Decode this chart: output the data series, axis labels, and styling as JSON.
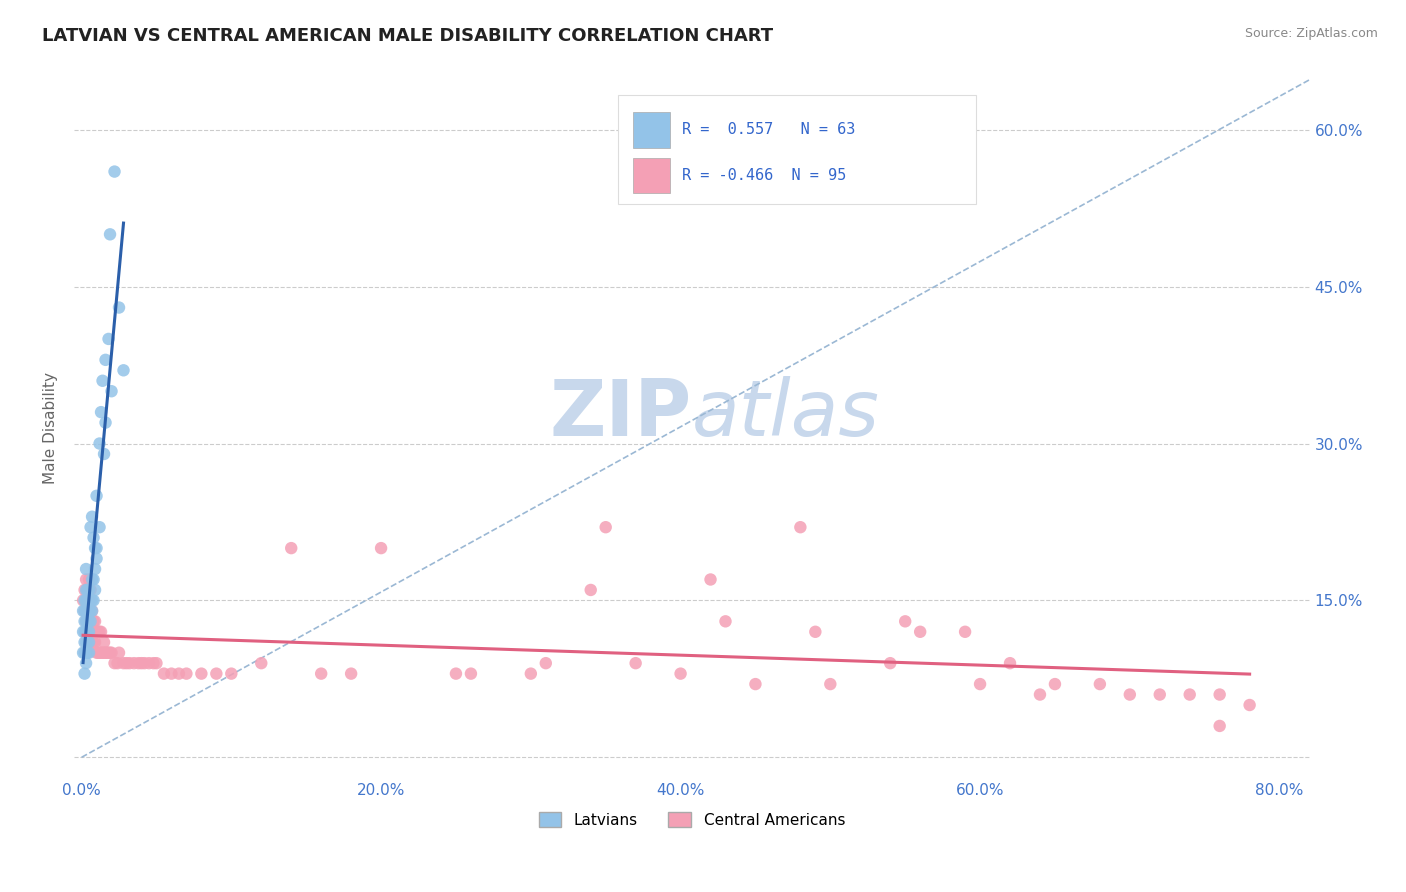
{
  "title": "LATVIAN VS CENTRAL AMERICAN MALE DISABILITY CORRELATION CHART",
  "source": "Source: ZipAtlas.com",
  "xlabel_ticks": [
    "0.0%",
    "20.0%",
    "40.0%",
    "60.0%",
    "80.0%"
  ],
  "xlabel_tick_vals": [
    0.0,
    0.2,
    0.4,
    0.6,
    0.8
  ],
  "ylabel": "Male Disability",
  "ylabel_ticks": [
    "0.0%",
    "15.0%",
    "30.0%",
    "45.0%",
    "60.0%"
  ],
  "ylabel_tick_vals": [
    0.0,
    0.15,
    0.3,
    0.45,
    0.6
  ],
  "xlim": [
    -0.005,
    0.82
  ],
  "ylim": [
    -0.02,
    0.65
  ],
  "latvian_R": 0.557,
  "latvian_N": 63,
  "central_american_R": -0.466,
  "central_american_N": 95,
  "latvian_color": "#93C3E8",
  "central_american_color": "#F4A0B5",
  "latvian_line_color": "#2B5FAA",
  "central_american_line_color": "#E06080",
  "trendline_dashed_color": "#9BB8D4",
  "background_color": "#FFFFFF",
  "watermark_zip": "ZIP",
  "watermark_atlas": "atlas",
  "watermark_color": "#C8D8EC",
  "latvian_x": [
    0.001,
    0.001,
    0.001,
    0.002,
    0.002,
    0.002,
    0.002,
    0.002,
    0.002,
    0.002,
    0.003,
    0.003,
    0.003,
    0.003,
    0.003,
    0.003,
    0.003,
    0.003,
    0.003,
    0.004,
    0.004,
    0.004,
    0.004,
    0.004,
    0.004,
    0.004,
    0.005,
    0.005,
    0.005,
    0.005,
    0.005,
    0.005,
    0.005,
    0.006,
    0.006,
    0.006,
    0.006,
    0.007,
    0.007,
    0.007,
    0.007,
    0.008,
    0.008,
    0.008,
    0.009,
    0.009,
    0.009,
    0.01,
    0.01,
    0.01,
    0.012,
    0.012,
    0.013,
    0.014,
    0.015,
    0.016,
    0.016,
    0.018,
    0.019,
    0.02,
    0.022,
    0.025,
    0.028
  ],
  "latvian_y": [
    0.1,
    0.12,
    0.14,
    0.08,
    0.1,
    0.11,
    0.12,
    0.13,
    0.14,
    0.15,
    0.09,
    0.1,
    0.11,
    0.12,
    0.13,
    0.14,
    0.15,
    0.16,
    0.18,
    0.1,
    0.11,
    0.12,
    0.13,
    0.14,
    0.15,
    0.16,
    0.1,
    0.11,
    0.12,
    0.13,
    0.14,
    0.15,
    0.16,
    0.13,
    0.14,
    0.15,
    0.22,
    0.14,
    0.15,
    0.17,
    0.23,
    0.15,
    0.17,
    0.21,
    0.16,
    0.18,
    0.2,
    0.19,
    0.2,
    0.25,
    0.22,
    0.3,
    0.33,
    0.36,
    0.29,
    0.32,
    0.38,
    0.4,
    0.5,
    0.35,
    0.56,
    0.43,
    0.37
  ],
  "central_american_x": [
    0.001,
    0.002,
    0.002,
    0.003,
    0.003,
    0.003,
    0.004,
    0.004,
    0.004,
    0.005,
    0.005,
    0.005,
    0.005,
    0.006,
    0.006,
    0.006,
    0.006,
    0.007,
    0.007,
    0.007,
    0.008,
    0.008,
    0.008,
    0.009,
    0.009,
    0.01,
    0.01,
    0.011,
    0.011,
    0.012,
    0.012,
    0.013,
    0.013,
    0.014,
    0.015,
    0.015,
    0.016,
    0.017,
    0.018,
    0.019,
    0.02,
    0.022,
    0.024,
    0.025,
    0.028,
    0.03,
    0.032,
    0.035,
    0.038,
    0.04,
    0.042,
    0.045,
    0.048,
    0.05,
    0.055,
    0.06,
    0.065,
    0.07,
    0.08,
    0.09,
    0.1,
    0.12,
    0.14,
    0.16,
    0.18,
    0.2,
    0.25,
    0.3,
    0.35,
    0.4,
    0.45,
    0.5,
    0.55,
    0.6,
    0.65,
    0.68,
    0.7,
    0.72,
    0.74,
    0.76,
    0.78,
    0.34,
    0.42,
    0.48,
    0.54,
    0.59,
    0.64,
    0.26,
    0.31,
    0.37,
    0.43,
    0.49,
    0.56,
    0.62,
    0.76
  ],
  "central_american_y": [
    0.15,
    0.14,
    0.16,
    0.13,
    0.15,
    0.17,
    0.12,
    0.14,
    0.16,
    0.11,
    0.13,
    0.15,
    0.17,
    0.11,
    0.12,
    0.14,
    0.16,
    0.11,
    0.12,
    0.14,
    0.11,
    0.12,
    0.13,
    0.11,
    0.13,
    0.1,
    0.12,
    0.1,
    0.12,
    0.1,
    0.12,
    0.1,
    0.12,
    0.1,
    0.1,
    0.11,
    0.1,
    0.1,
    0.1,
    0.1,
    0.1,
    0.09,
    0.09,
    0.1,
    0.09,
    0.09,
    0.09,
    0.09,
    0.09,
    0.09,
    0.09,
    0.09,
    0.09,
    0.09,
    0.08,
    0.08,
    0.08,
    0.08,
    0.08,
    0.08,
    0.08,
    0.09,
    0.2,
    0.08,
    0.08,
    0.2,
    0.08,
    0.08,
    0.22,
    0.08,
    0.07,
    0.07,
    0.13,
    0.07,
    0.07,
    0.07,
    0.06,
    0.06,
    0.06,
    0.06,
    0.05,
    0.16,
    0.17,
    0.22,
    0.09,
    0.12,
    0.06,
    0.08,
    0.09,
    0.09,
    0.13,
    0.12,
    0.12,
    0.09,
    0.03
  ]
}
